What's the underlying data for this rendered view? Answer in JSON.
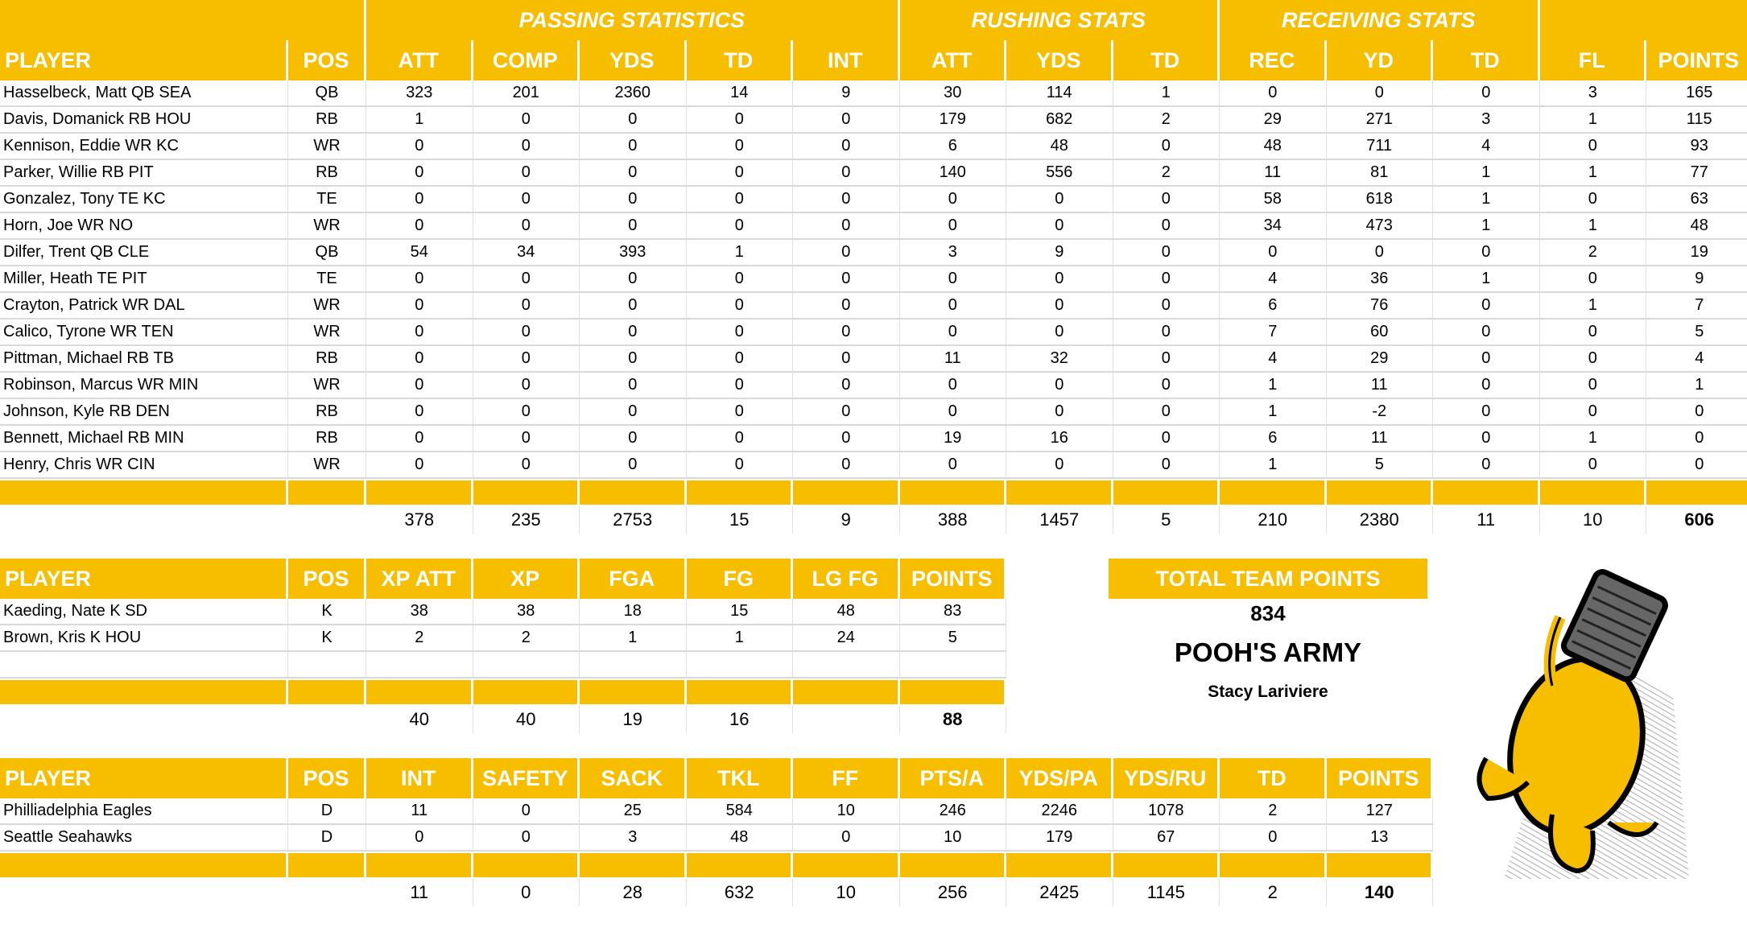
{
  "main_table": {
    "groups": [
      "PASSING STATISTICS",
      "RUSHING STATS",
      "RECEIVING STATS"
    ],
    "headers": [
      "PLAYER",
      "POS",
      "ATT",
      "COMP",
      "YDS",
      "TD",
      "INT",
      "ATT",
      "YDS",
      "TD",
      "REC",
      "YD",
      "TD",
      "FL",
      "POINTS"
    ],
    "rows": [
      [
        "Hasselbeck, Matt QB SEA",
        "QB",
        "323",
        "201",
        "2360",
        "14",
        "9",
        "30",
        "114",
        "1",
        "0",
        "0",
        "0",
        "3",
        "165"
      ],
      [
        "Davis, Domanick RB HOU",
        "RB",
        "1",
        "0",
        "0",
        "0",
        "0",
        "179",
        "682",
        "2",
        "29",
        "271",
        "3",
        "1",
        "115"
      ],
      [
        "Kennison, Eddie WR KC",
        "WR",
        "0",
        "0",
        "0",
        "0",
        "0",
        "6",
        "48",
        "0",
        "48",
        "711",
        "4",
        "0",
        "93"
      ],
      [
        "Parker, Willie RB PIT",
        "RB",
        "0",
        "0",
        "0",
        "0",
        "0",
        "140",
        "556",
        "2",
        "11",
        "81",
        "1",
        "1",
        "77"
      ],
      [
        "Gonzalez, Tony TE KC",
        "TE",
        "0",
        "0",
        "0",
        "0",
        "0",
        "0",
        "0",
        "0",
        "58",
        "618",
        "1",
        "0",
        "63"
      ],
      [
        "Horn, Joe WR NO",
        "WR",
        "0",
        "0",
        "0",
        "0",
        "0",
        "0",
        "0",
        "0",
        "34",
        "473",
        "1",
        "1",
        "48"
      ],
      [
        "Dilfer, Trent QB CLE",
        "QB",
        "54",
        "34",
        "393",
        "1",
        "0",
        "3",
        "9",
        "0",
        "0",
        "0",
        "0",
        "2",
        "19"
      ],
      [
        "Miller, Heath TE PIT",
        "TE",
        "0",
        "0",
        "0",
        "0",
        "0",
        "0",
        "0",
        "0",
        "4",
        "36",
        "1",
        "0",
        "9"
      ],
      [
        "Crayton, Patrick WR DAL",
        "WR",
        "0",
        "0",
        "0",
        "0",
        "0",
        "0",
        "0",
        "0",
        "6",
        "76",
        "0",
        "1",
        "7"
      ],
      [
        "Calico, Tyrone WR TEN",
        "WR",
        "0",
        "0",
        "0",
        "0",
        "0",
        "0",
        "0",
        "0",
        "7",
        "60",
        "0",
        "0",
        "5"
      ],
      [
        "Pittman, Michael RB TB",
        "RB",
        "0",
        "0",
        "0",
        "0",
        "0",
        "11",
        "32",
        "0",
        "4",
        "29",
        "0",
        "0",
        "4"
      ],
      [
        "Robinson, Marcus WR MIN",
        "WR",
        "0",
        "0",
        "0",
        "0",
        "0",
        "0",
        "0",
        "0",
        "1",
        "11",
        "0",
        "0",
        "1"
      ],
      [
        "Johnson, Kyle RB DEN",
        "RB",
        "0",
        "0",
        "0",
        "0",
        "0",
        "0",
        "0",
        "0",
        "1",
        "-2",
        "0",
        "0",
        "0"
      ],
      [
        "Bennett, Michael RB MIN",
        "RB",
        "0",
        "0",
        "0",
        "0",
        "0",
        "19",
        "16",
        "0",
        "6",
        "11",
        "0",
        "1",
        "0"
      ],
      [
        "Henry, Chris WR CIN",
        "WR",
        "0",
        "0",
        "0",
        "0",
        "0",
        "0",
        "0",
        "0",
        "1",
        "5",
        "0",
        "0",
        "0"
      ]
    ],
    "totals": [
      "",
      "",
      "378",
      "235",
      "2753",
      "15",
      "9",
      "388",
      "1457",
      "5",
      "210",
      "2380",
      "11",
      "10",
      "606"
    ]
  },
  "kicker_table": {
    "headers": [
      "PLAYER",
      "POS",
      "XP ATT",
      "XP",
      "FGA",
      "FG",
      "LG FG",
      "POINTS"
    ],
    "rows": [
      [
        "Kaeding, Nate K SD",
        "K",
        "38",
        "38",
        "18",
        "15",
        "48",
        "83"
      ],
      [
        "Brown, Kris K HOU",
        "K",
        "2",
        "2",
        "1",
        "1",
        "24",
        "5"
      ]
    ],
    "totals": [
      "",
      "",
      "40",
      "40",
      "19",
      "16",
      "",
      "88"
    ]
  },
  "defense_table": {
    "headers": [
      "PLAYER",
      "POS",
      "INT",
      "SAFETY",
      "SACK",
      "TKL",
      "FF",
      "PTS/A",
      "YDS/PA",
      "YDS/RU",
      "TD",
      "POINTS"
    ],
    "rows": [
      [
        "Philliadelphia Eagles",
        "D",
        "11",
        "0",
        "25",
        "584",
        "10",
        "246",
        "2246",
        "1078",
        "2",
        "127"
      ],
      [
        "Seattle Seahawks",
        "D",
        "0",
        "0",
        "3",
        "48",
        "0",
        "10",
        "179",
        "67",
        "0",
        "13"
      ]
    ],
    "totals": [
      "",
      "",
      "11",
      "0",
      "28",
      "632",
      "10",
      "256",
      "2425",
      "1145",
      "2",
      "140"
    ]
  },
  "summary": {
    "label": "TOTAL TEAM POINTS",
    "total": "834",
    "team_name": "POOH'S ARMY",
    "owner": "Stacy Lariviere"
  },
  "colors": {
    "accent": "#F7BE00",
    "header_text": "#FFFFFF"
  },
  "icons": {
    "mascot": "winnie-the-pooh-illustration"
  }
}
